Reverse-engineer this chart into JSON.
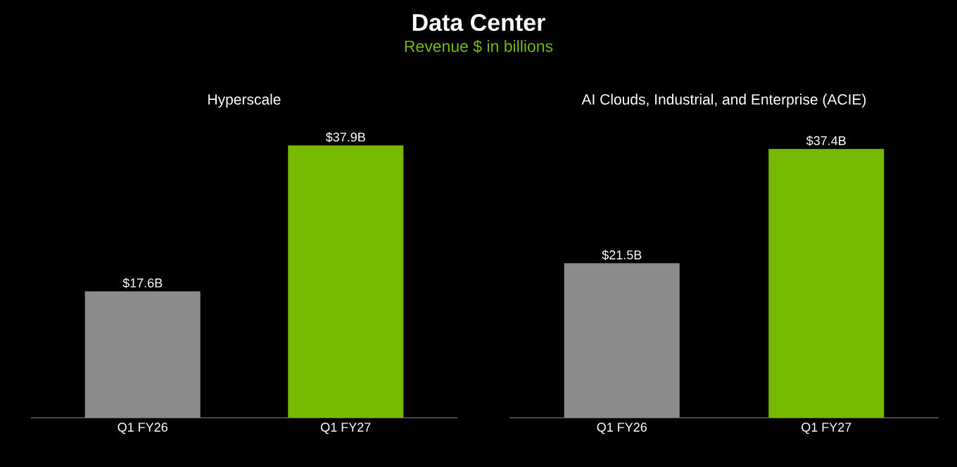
{
  "chart_data": [
    {
      "type": "other",
      "title": "Data Center",
      "subtitle": "Revenue $ in billions"
    },
    {
      "type": "bar",
      "title": "Hyperscale",
      "categories": [
        "Q1 FY26",
        "Q1 FY27"
      ],
      "values": [
        17.6,
        37.9
      ],
      "colors": [
        "#8c8c8c",
        "#76b900"
      ],
      "value_labels": [
        "$17.6B",
        "$37.9B"
      ]
    },
    {
      "type": "bar",
      "title": "AI Clouds, Industrial, and Enterprise (ACIE)",
      "categories": [
        "Q1 FY26",
        "Q1 FY27"
      ],
      "values": [
        21.5,
        37.4
      ],
      "colors": [
        "#8c8c8c",
        "#76b900"
      ],
      "value_labels": [
        "$21.5B",
        "$37.4B"
      ]
    }
  ]
}
